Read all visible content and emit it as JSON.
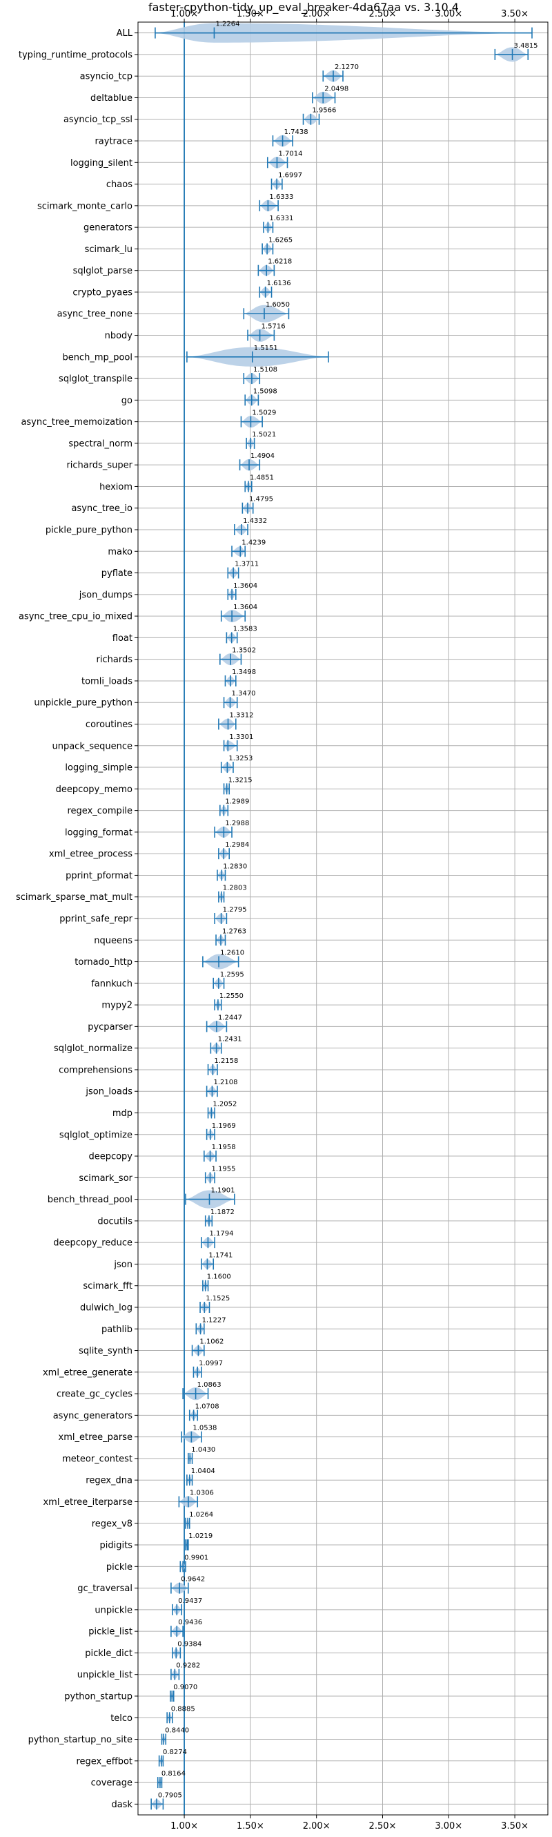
{
  "chart_data": {
    "type": "violin",
    "title": "faster-cpython-tidy_up_eval_breaker-4da67aa vs. 3.10.4",
    "xlim": [
      0.65,
      3.75
    ],
    "xticks": [
      1.0,
      1.5,
      2.0,
      2.5,
      3.0,
      3.5
    ],
    "xtick_labels": [
      "1.00×",
      "1.50×",
      "2.00×",
      "2.50×",
      "3.00×",
      "3.50×"
    ],
    "reference_line": 1.0,
    "grid": true,
    "colors": {
      "line": "#1f77b4",
      "violin": "#b5cde6",
      "grid": "#b0b0b0"
    },
    "categories": [
      {
        "name": "ALL",
        "value": 1.2264,
        "min": 0.78,
        "max": 3.63
      },
      {
        "name": "typing_runtime_protocols",
        "value": 3.4815,
        "min": 3.35,
        "max": 3.6
      },
      {
        "name": "asyncio_tcp",
        "value": 2.127,
        "min": 2.05,
        "max": 2.2
      },
      {
        "name": "deltablue",
        "value": 2.0498,
        "min": 1.97,
        "max": 2.14
      },
      {
        "name": "asyncio_tcp_ssl",
        "value": 1.9566,
        "min": 1.9,
        "max": 2.02
      },
      {
        "name": "raytrace",
        "value": 1.7438,
        "min": 1.67,
        "max": 1.82
      },
      {
        "name": "logging_silent",
        "value": 1.7014,
        "min": 1.63,
        "max": 1.78
      },
      {
        "name": "chaos",
        "value": 1.6997,
        "min": 1.66,
        "max": 1.74
      },
      {
        "name": "scimark_monte_carlo",
        "value": 1.6333,
        "min": 1.57,
        "max": 1.71
      },
      {
        "name": "generators",
        "value": 1.6331,
        "min": 1.6,
        "max": 1.67
      },
      {
        "name": "scimark_lu",
        "value": 1.6265,
        "min": 1.59,
        "max": 1.67
      },
      {
        "name": "sqlglot_parse",
        "value": 1.6218,
        "min": 1.56,
        "max": 1.68
      },
      {
        "name": "crypto_pyaes",
        "value": 1.6136,
        "min": 1.57,
        "max": 1.66
      },
      {
        "name": "async_tree_none",
        "value": 1.605,
        "min": 1.45,
        "max": 1.79
      },
      {
        "name": "nbody",
        "value": 1.5716,
        "min": 1.48,
        "max": 1.68
      },
      {
        "name": "bench_mp_pool",
        "value": 1.5151,
        "min": 1.02,
        "max": 2.09
      },
      {
        "name": "sqlglot_transpile",
        "value": 1.5108,
        "min": 1.45,
        "max": 1.57
      },
      {
        "name": "go",
        "value": 1.5098,
        "min": 1.46,
        "max": 1.56
      },
      {
        "name": "async_tree_memoization",
        "value": 1.5029,
        "min": 1.43,
        "max": 1.59
      },
      {
        "name": "spectral_norm",
        "value": 1.5021,
        "min": 1.47,
        "max": 1.53
      },
      {
        "name": "richards_super",
        "value": 1.4904,
        "min": 1.42,
        "max": 1.57
      },
      {
        "name": "hexiom",
        "value": 1.4851,
        "min": 1.46,
        "max": 1.51
      },
      {
        "name": "async_tree_io",
        "value": 1.4795,
        "min": 1.44,
        "max": 1.52
      },
      {
        "name": "pickle_pure_python",
        "value": 1.4332,
        "min": 1.38,
        "max": 1.48
      },
      {
        "name": "mako",
        "value": 1.4239,
        "min": 1.36,
        "max": 1.46
      },
      {
        "name": "pyflate",
        "value": 1.3711,
        "min": 1.33,
        "max": 1.41
      },
      {
        "name": "json_dumps",
        "value": 1.3604,
        "min": 1.33,
        "max": 1.39
      },
      {
        "name": "async_tree_cpu_io_mixed",
        "value": 1.3604,
        "min": 1.28,
        "max": 1.46
      },
      {
        "name": "float",
        "value": 1.3583,
        "min": 1.32,
        "max": 1.4
      },
      {
        "name": "richards",
        "value": 1.3502,
        "min": 1.27,
        "max": 1.43
      },
      {
        "name": "tomli_loads",
        "value": 1.3498,
        "min": 1.31,
        "max": 1.39
      },
      {
        "name": "unpickle_pure_python",
        "value": 1.347,
        "min": 1.3,
        "max": 1.4
      },
      {
        "name": "coroutines",
        "value": 1.3312,
        "min": 1.26,
        "max": 1.39
      },
      {
        "name": "unpack_sequence",
        "value": 1.3301,
        "min": 1.3,
        "max": 1.4
      },
      {
        "name": "logging_simple",
        "value": 1.3253,
        "min": 1.28,
        "max": 1.37
      },
      {
        "name": "deepcopy_memo",
        "value": 1.3215,
        "min": 1.3,
        "max": 1.34
      },
      {
        "name": "regex_compile",
        "value": 1.2989,
        "min": 1.27,
        "max": 1.33
      },
      {
        "name": "logging_format",
        "value": 1.2988,
        "min": 1.23,
        "max": 1.36
      },
      {
        "name": "xml_etree_process",
        "value": 1.2984,
        "min": 1.26,
        "max": 1.34
      },
      {
        "name": "pprint_pformat",
        "value": 1.283,
        "min": 1.25,
        "max": 1.31
      },
      {
        "name": "scimark_sparse_mat_mult",
        "value": 1.2803,
        "min": 1.26,
        "max": 1.3
      },
      {
        "name": "pprint_safe_repr",
        "value": 1.2795,
        "min": 1.23,
        "max": 1.32
      },
      {
        "name": "nqueens",
        "value": 1.2763,
        "min": 1.24,
        "max": 1.31
      },
      {
        "name": "tornado_http",
        "value": 1.261,
        "min": 1.14,
        "max": 1.41
      },
      {
        "name": "fannkuch",
        "value": 1.2595,
        "min": 1.22,
        "max": 1.3
      },
      {
        "name": "mypy2",
        "value": 1.255,
        "min": 1.23,
        "max": 1.28
      },
      {
        "name": "pycparser",
        "value": 1.2447,
        "min": 1.17,
        "max": 1.32
      },
      {
        "name": "sqlglot_normalize",
        "value": 1.2431,
        "min": 1.2,
        "max": 1.28
      },
      {
        "name": "comprehensions",
        "value": 1.2158,
        "min": 1.18,
        "max": 1.25
      },
      {
        "name": "json_loads",
        "value": 1.2108,
        "min": 1.17,
        "max": 1.25
      },
      {
        "name": "mdp",
        "value": 1.2052,
        "min": 1.18,
        "max": 1.23
      },
      {
        "name": "sqlglot_optimize",
        "value": 1.1969,
        "min": 1.17,
        "max": 1.23
      },
      {
        "name": "deepcopy",
        "value": 1.1958,
        "min": 1.15,
        "max": 1.24
      },
      {
        "name": "scimark_sor",
        "value": 1.1955,
        "min": 1.16,
        "max": 1.23
      },
      {
        "name": "bench_thread_pool",
        "value": 1.1901,
        "min": 1.01,
        "max": 1.38
      },
      {
        "name": "docutils",
        "value": 1.1872,
        "min": 1.16,
        "max": 1.21
      },
      {
        "name": "deepcopy_reduce",
        "value": 1.1794,
        "min": 1.13,
        "max": 1.23
      },
      {
        "name": "json",
        "value": 1.1741,
        "min": 1.13,
        "max": 1.22
      },
      {
        "name": "scimark_fft",
        "value": 1.16,
        "min": 1.14,
        "max": 1.18
      },
      {
        "name": "dulwich_log",
        "value": 1.1525,
        "min": 1.12,
        "max": 1.19
      },
      {
        "name": "pathlib",
        "value": 1.1227,
        "min": 1.09,
        "max": 1.15
      },
      {
        "name": "sqlite_synth",
        "value": 1.1062,
        "min": 1.06,
        "max": 1.15
      },
      {
        "name": "xml_etree_generate",
        "value": 1.0997,
        "min": 1.07,
        "max": 1.13
      },
      {
        "name": "create_gc_cycles",
        "value": 1.0863,
        "min": 0.99,
        "max": 1.18
      },
      {
        "name": "async_generators",
        "value": 1.0708,
        "min": 1.04,
        "max": 1.1
      },
      {
        "name": "xml_etree_parse",
        "value": 1.0538,
        "min": 0.98,
        "max": 1.13
      },
      {
        "name": "meteor_contest",
        "value": 1.043,
        "min": 1.03,
        "max": 1.06
      },
      {
        "name": "regex_dna",
        "value": 1.0404,
        "min": 1.02,
        "max": 1.06
      },
      {
        "name": "xml_etree_iterparse",
        "value": 1.0306,
        "min": 0.96,
        "max": 1.1
      },
      {
        "name": "regex_v8",
        "value": 1.0264,
        "min": 1.01,
        "max": 1.04
      },
      {
        "name": "pidigits",
        "value": 1.0219,
        "min": 1.01,
        "max": 1.03
      },
      {
        "name": "pickle",
        "value": 0.9901,
        "min": 0.97,
        "max": 1.01
      },
      {
        "name": "gc_traversal",
        "value": 0.9642,
        "min": 0.9,
        "max": 1.03
      },
      {
        "name": "unpickle",
        "value": 0.9437,
        "min": 0.91,
        "max": 0.98
      },
      {
        "name": "pickle_list",
        "value": 0.9436,
        "min": 0.9,
        "max": 0.99
      },
      {
        "name": "pickle_dict",
        "value": 0.9384,
        "min": 0.91,
        "max": 0.97
      },
      {
        "name": "unpickle_list",
        "value": 0.9282,
        "min": 0.9,
        "max": 0.96
      },
      {
        "name": "python_startup",
        "value": 0.907,
        "min": 0.895,
        "max": 0.92
      },
      {
        "name": "telco",
        "value": 0.8885,
        "min": 0.87,
        "max": 0.91
      },
      {
        "name": "python_startup_no_site",
        "value": 0.844,
        "min": 0.83,
        "max": 0.86
      },
      {
        "name": "regex_effbot",
        "value": 0.8274,
        "min": 0.81,
        "max": 0.84
      },
      {
        "name": "coverage",
        "value": 0.8164,
        "min": 0.8,
        "max": 0.83
      },
      {
        "name": "dask",
        "value": 0.7905,
        "min": 0.75,
        "max": 0.84
      }
    ]
  }
}
